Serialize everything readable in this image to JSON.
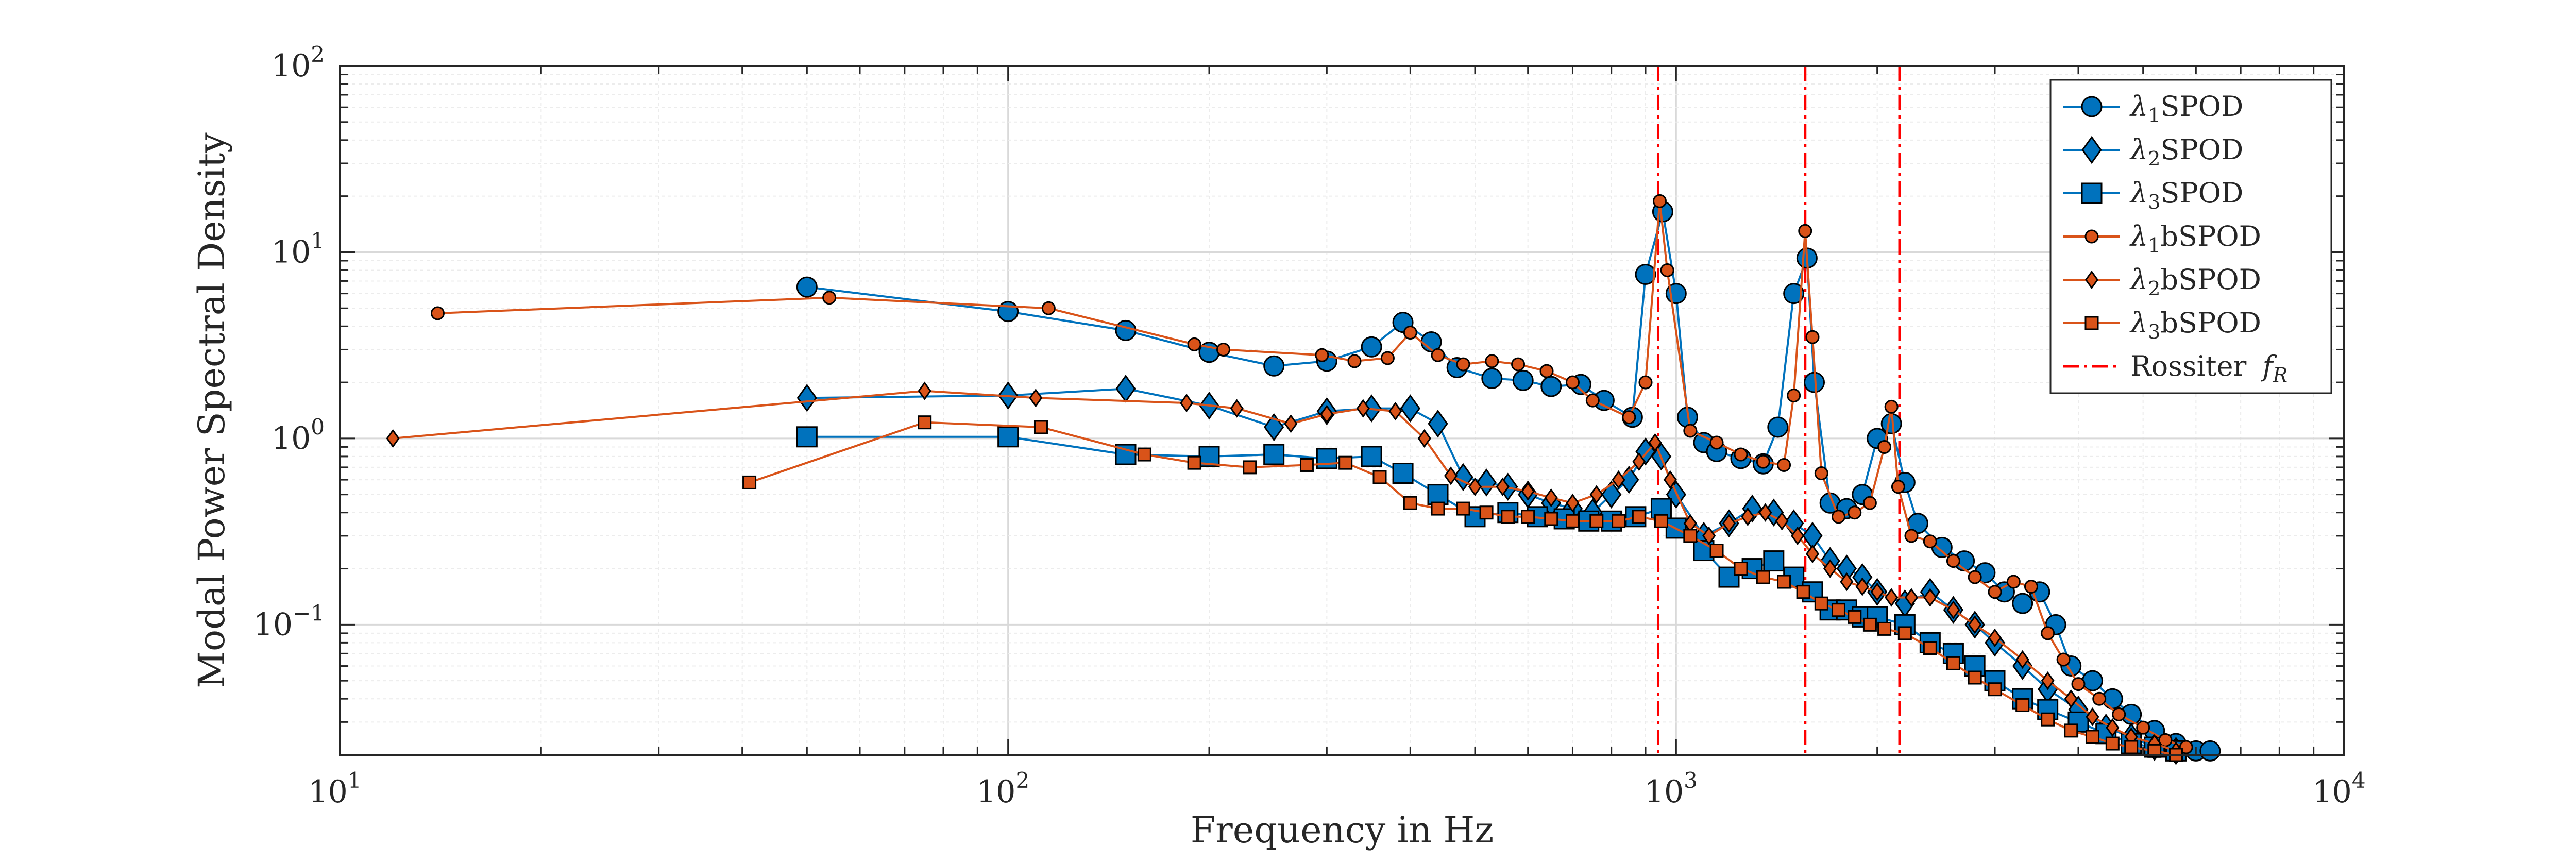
{
  "chart_data": {
    "type": "line",
    "xscale": "log",
    "yscale": "log",
    "xlim": [
      10,
      10000
    ],
    "ylim": [
      0.02,
      100
    ],
    "xlabel": "Frequency in Hz",
    "ylabel": "Modal Power Spectral Density",
    "x_ticks": [
      {
        "base": "10",
        "exp": "1"
      },
      {
        "base": "10",
        "exp": "2"
      },
      {
        "base": "10",
        "exp": "3"
      },
      {
        "base": "10",
        "exp": "4"
      }
    ],
    "y_ticks": [
      {
        "base": "10",
        "exp": "−1"
      },
      {
        "base": "10",
        "exp": "0"
      },
      {
        "base": "10",
        "exp": "1"
      },
      {
        "base": "10",
        "exp": "2"
      }
    ],
    "grid": true,
    "legend_position": "top-right",
    "colors": {
      "spod": "#0072BD",
      "bspod": "#D95319",
      "rossiter": "#FF0000",
      "marker_edge": "#000000"
    },
    "series": [
      {
        "name": "λ1SPOD",
        "lambda": "λ",
        "sub": "1",
        "suffix": "SPOD",
        "color": "#0072BD",
        "marker": "circle",
        "x": [
          50,
          100,
          150,
          200,
          250,
          300,
          350,
          390,
          430,
          470,
          530,
          590,
          650,
          720,
          780,
          860,
          900,
          955,
          1000,
          1040,
          1100,
          1150,
          1250,
          1350,
          1420,
          1500,
          1570,
          1610,
          1700,
          1800,
          1900,
          2000,
          2100,
          2200,
          2300,
          2500,
          2700,
          2900,
          3100,
          3300,
          3500,
          3700,
          3900,
          4200,
          4500,
          4800,
          5200,
          5600,
          6000,
          6300
        ],
        "y": [
          6.5,
          4.8,
          3.8,
          2.9,
          2.45,
          2.6,
          3.1,
          4.2,
          3.3,
          2.4,
          2.1,
          2.05,
          1.9,
          1.95,
          1.6,
          1.3,
          7.6,
          16.5,
          6.0,
          1.3,
          0.95,
          0.85,
          0.78,
          0.73,
          1.15,
          6.0,
          9.3,
          2.0,
          0.45,
          0.42,
          0.5,
          1.0,
          1.2,
          0.58,
          0.35,
          0.26,
          0.22,
          0.19,
          0.15,
          0.13,
          0.15,
          0.1,
          0.06,
          0.05,
          0.04,
          0.033,
          0.027,
          0.023,
          0.021,
          0.021
        ]
      },
      {
        "name": "λ2SPOD",
        "lambda": "λ",
        "sub": "2",
        "suffix": "SPOD",
        "color": "#0072BD",
        "marker": "diamond",
        "x": [
          50,
          100,
          150,
          200,
          250,
          300,
          350,
          400,
          440,
          480,
          520,
          560,
          600,
          650,
          700,
          750,
          800,
          850,
          900,
          950,
          1000,
          1100,
          1200,
          1300,
          1400,
          1500,
          1600,
          1700,
          1800,
          1900,
          2000,
          2200,
          2400,
          2600,
          2800,
          3000,
          3300,
          3600,
          4000,
          4400,
          4800,
          5200,
          5600
        ],
        "y": [
          1.65,
          1.7,
          1.85,
          1.5,
          1.15,
          1.4,
          1.45,
          1.45,
          1.2,
          0.62,
          0.58,
          0.55,
          0.5,
          0.45,
          0.42,
          0.4,
          0.5,
          0.6,
          0.85,
          0.8,
          0.5,
          0.3,
          0.35,
          0.42,
          0.4,
          0.35,
          0.3,
          0.22,
          0.2,
          0.18,
          0.15,
          0.13,
          0.15,
          0.12,
          0.1,
          0.08,
          0.06,
          0.045,
          0.035,
          0.028,
          0.025,
          0.022,
          0.021
        ]
      },
      {
        "name": "λ3SPOD",
        "lambda": "λ",
        "sub": "3",
        "suffix": "SPOD",
        "color": "#0072BD",
        "marker": "square",
        "x": [
          50,
          100,
          150,
          200,
          250,
          300,
          350,
          390,
          440,
          500,
          560,
          620,
          680,
          740,
          800,
          870,
          950,
          1000,
          1100,
          1200,
          1300,
          1400,
          1500,
          1600,
          1700,
          1800,
          1900,
          2000,
          2200,
          2400,
          2600,
          2800,
          3000,
          3300,
          3600,
          4000,
          4400,
          4800,
          5200,
          5600
        ],
        "y": [
          1.02,
          1.02,
          0.82,
          0.8,
          0.82,
          0.78,
          0.8,
          0.65,
          0.5,
          0.38,
          0.4,
          0.38,
          0.37,
          0.36,
          0.36,
          0.38,
          0.42,
          0.33,
          0.25,
          0.18,
          0.2,
          0.22,
          0.18,
          0.15,
          0.12,
          0.12,
          0.11,
          0.11,
          0.1,
          0.08,
          0.07,
          0.06,
          0.05,
          0.04,
          0.035,
          0.03,
          0.026,
          0.023,
          0.022,
          0.021
        ]
      },
      {
        "name": "λ1bSPOD",
        "lambda": "λ",
        "sub": "1",
        "suffix": "bSPOD",
        "color": "#D95319",
        "marker": "circle",
        "x": [
          14,
          54,
          115,
          190,
          210,
          295,
          330,
          370,
          400,
          440,
          480,
          530,
          580,
          640,
          700,
          750,
          850,
          900,
          945,
          970,
          1050,
          1150,
          1250,
          1350,
          1450,
          1500,
          1560,
          1600,
          1650,
          1750,
          1850,
          1950,
          2050,
          2100,
          2150,
          2250,
          2400,
          2600,
          2800,
          3000,
          3200,
          3400,
          3600,
          3800,
          4000,
          4300,
          4600,
          5000,
          5400,
          5800
        ],
        "y": [
          4.7,
          5.7,
          5.0,
          3.2,
          3.0,
          2.8,
          2.6,
          2.7,
          3.7,
          2.8,
          2.5,
          2.6,
          2.5,
          2.3,
          2.0,
          1.6,
          1.3,
          2.0,
          18.8,
          8.0,
          1.1,
          0.95,
          0.82,
          0.75,
          0.72,
          1.7,
          13.0,
          3.5,
          0.65,
          0.38,
          0.4,
          0.45,
          0.9,
          1.48,
          0.55,
          0.3,
          0.28,
          0.22,
          0.18,
          0.15,
          0.17,
          0.16,
          0.09,
          0.065,
          0.048,
          0.04,
          0.033,
          0.028,
          0.024,
          0.022
        ]
      },
      {
        "name": "λ2bSPOD",
        "lambda": "λ",
        "sub": "2",
        "suffix": "bSPOD",
        "color": "#D95319",
        "marker": "diamond",
        "x": [
          12,
          75,
          110,
          185,
          220,
          265,
          300,
          340,
          380,
          420,
          460,
          500,
          550,
          600,
          650,
          700,
          760,
          820,
          880,
          930,
          980,
          1050,
          1120,
          1200,
          1280,
          1360,
          1440,
          1520,
          1600,
          1700,
          1800,
          1900,
          2000,
          2100,
          2250,
          2400,
          2600,
          2800,
          3000,
          3300,
          3600,
          3900,
          4200,
          4500,
          4800,
          5200,
          5600
        ],
        "y": [
          1.0,
          1.8,
          1.65,
          1.55,
          1.45,
          1.2,
          1.35,
          1.45,
          1.4,
          1.0,
          0.63,
          0.55,
          0.55,
          0.52,
          0.48,
          0.45,
          0.5,
          0.6,
          0.75,
          0.95,
          0.6,
          0.35,
          0.3,
          0.35,
          0.38,
          0.4,
          0.36,
          0.3,
          0.24,
          0.2,
          0.17,
          0.16,
          0.15,
          0.14,
          0.14,
          0.14,
          0.12,
          0.1,
          0.085,
          0.065,
          0.05,
          0.04,
          0.032,
          0.028,
          0.025,
          0.023,
          0.021
        ]
      },
      {
        "name": "λ3bSPOD",
        "lambda": "λ",
        "sub": "3",
        "suffix": "bSPOD",
        "color": "#D95319",
        "marker": "square",
        "x": [
          41,
          75,
          112,
          160,
          190,
          230,
          280,
          320,
          360,
          400,
          440,
          480,
          520,
          560,
          600,
          650,
          700,
          760,
          820,
          880,
          950,
          1050,
          1150,
          1250,
          1350,
          1450,
          1550,
          1650,
          1750,
          1850,
          1950,
          2050,
          2200,
          2400,
          2600,
          2800,
          3000,
          3300,
          3600,
          3900,
          4200,
          4500,
          4800,
          5200,
          5600
        ],
        "y": [
          0.58,
          1.22,
          1.15,
          0.82,
          0.74,
          0.7,
          0.72,
          0.74,
          0.62,
          0.45,
          0.42,
          0.42,
          0.4,
          0.38,
          0.38,
          0.37,
          0.36,
          0.36,
          0.36,
          0.38,
          0.36,
          0.3,
          0.25,
          0.2,
          0.18,
          0.17,
          0.15,
          0.13,
          0.12,
          0.11,
          0.1,
          0.095,
          0.09,
          0.075,
          0.062,
          0.052,
          0.045,
          0.037,
          0.031,
          0.027,
          0.025,
          0.023,
          0.022,
          0.021,
          0.02
        ]
      }
    ],
    "reference_lines": {
      "name": "Rossiter fR",
      "label_main": "Rossiter ",
      "label_symbol": "f",
      "label_sub": "R",
      "color": "#FF0000",
      "x": [
        940,
        1560,
        2160
      ]
    }
  }
}
